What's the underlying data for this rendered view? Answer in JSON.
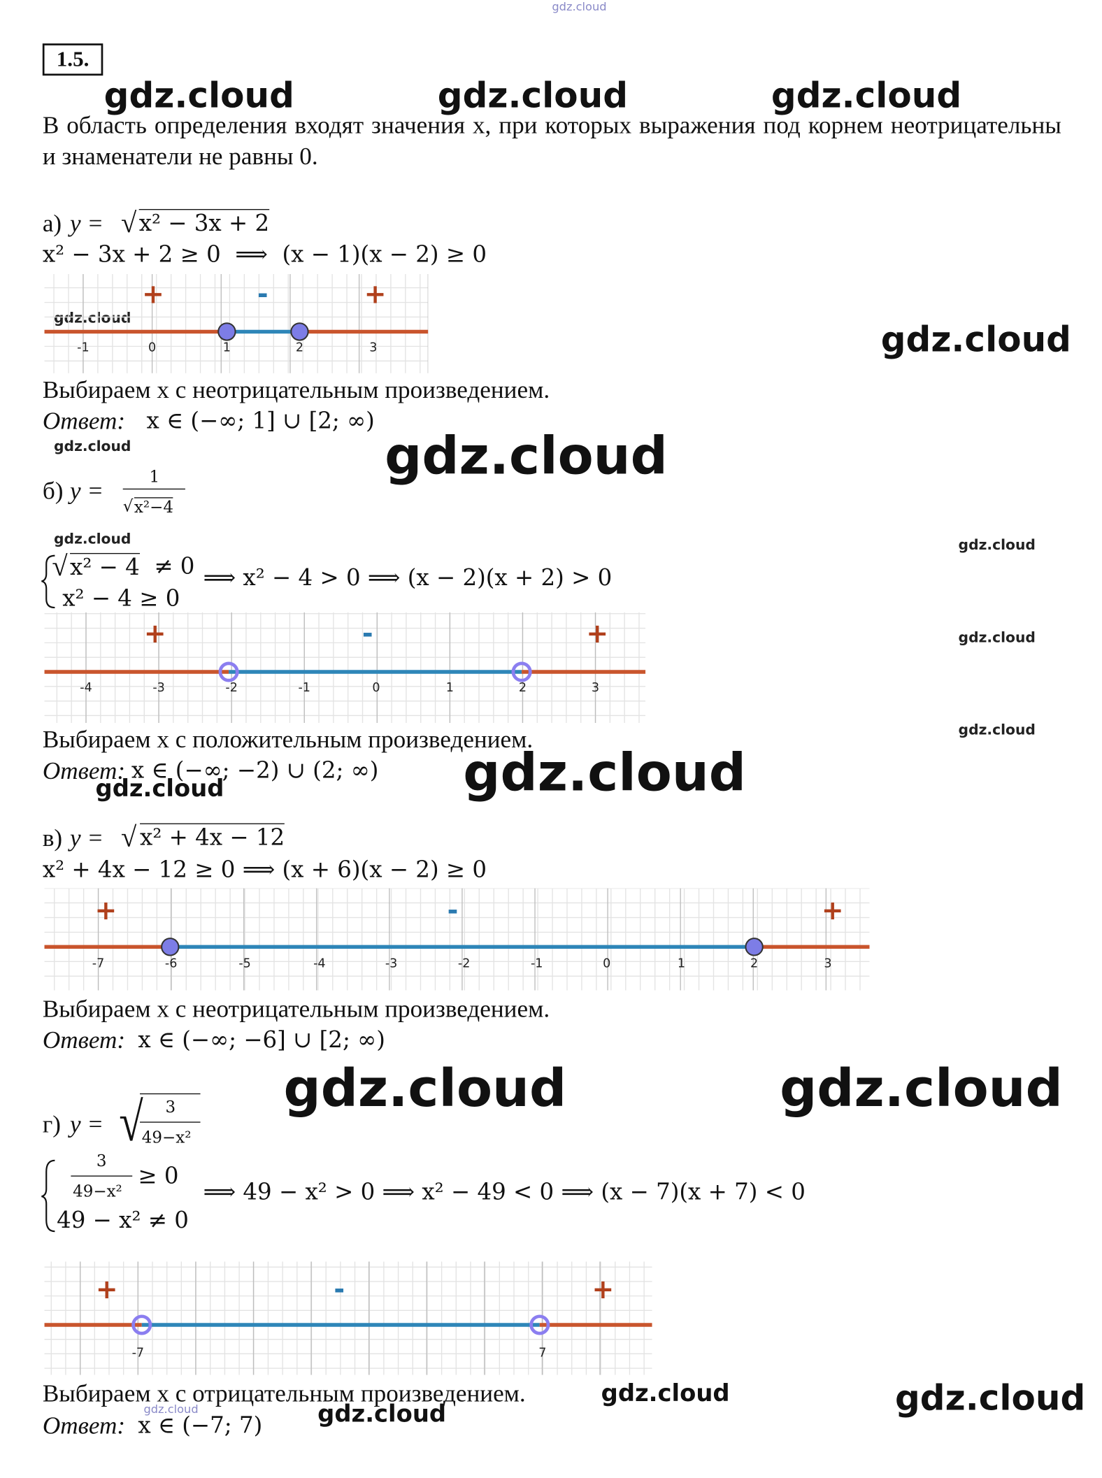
{
  "watermarks": [
    "gdz.cloud",
    "gdz.cloud",
    "gdz.cloud",
    "gdz.cloud",
    "gdz.cloud",
    "gdz.cloud",
    "gdz.cloud",
    "gdz.cloud",
    "gdz.cloud",
    "gdz.cloud",
    "gdz.cloud",
    "gdz.cloud",
    "gdz.cloud",
    "gdz.cloud",
    "gdz.cloud",
    "gdz.cloud",
    "gdz.cloud",
    "gdz.cloud",
    "gdz.cloud",
    "gdz.cloud"
  ],
  "header": {
    "number": "1.5."
  },
  "intro": "В область определения входят значения x, при которых выражения под корнем неотрицательны и знаменатели не равны 0.",
  "parts": [
    {
      "label": "а)",
      "lhs": "y =",
      "radical": "√",
      "radicand": "x² − 3x + 2",
      "steps": [
        "x² − 3x + 2 ≥ 0  ⟹  (x − 1)(x − 2) ≥ 0"
      ],
      "number_line": {
        "signs": [
          "+",
          "-",
          "+"
        ],
        "ticks": [
          -1,
          0,
          1,
          2,
          3
        ]
      },
      "conclusion": "Выбираем x с неотрицательным произведением.",
      "answer_label": "Ответ:",
      "answer": "x ∈ (−∞; 1] ∪ [2; ∞)"
    },
    {
      "label": "б)",
      "lhs": "y =",
      "numerator": "1",
      "radical": "√",
      "radicand": "x²−4",
      "system": [
        {
          "radical": "√",
          "radicand": "x² − 4",
          "rest": "≠ 0"
        },
        {
          "text": "x² − 4 ≥ 0"
        }
      ],
      "implication": "⟹ x² − 4 > 0 ⟹ (x − 2)(x + 2) > 0",
      "number_line": {
        "signs": [
          "+",
          "-",
          "+"
        ],
        "ticks": [
          -4,
          -3,
          -2,
          -1,
          0,
          1,
          2,
          3
        ]
      },
      "conclusion": "Выбираем x с положительным произведением.",
      "answer_label": "Ответ:",
      "answer": "x ∈ (−∞; −2) ∪ (2; ∞)"
    },
    {
      "label": "в)",
      "lhs": "y =",
      "radical": "√",
      "radicand": "x² + 4x − 12",
      "steps": [
        "x² + 4x − 12 ≥ 0 ⟹ (x + 6)(x − 2) ≥ 0"
      ],
      "number_line": {
        "signs": [
          "+",
          "-",
          "+"
        ],
        "ticks": [
          -7,
          -6,
          -5,
          -4,
          -3,
          -2,
          -1,
          0,
          1,
          2,
          3
        ]
      },
      "conclusion": "Выбираем x с неотрицательным произведением.",
      "answer_label": "Ответ:",
      "answer": "x ∈ (−∞; −6] ∪ [2; ∞)"
    },
    {
      "label": "г)",
      "lhs": "y =",
      "radical": "√",
      "numerator": "3",
      "denominator": "49−x²",
      "system": [
        {
          "numerator": "3",
          "denominator": "49−x²",
          "rest": "≥ 0"
        },
        {
          "text": "49 − x² ≠ 0"
        }
      ],
      "implication": "⟹ 49 − x² > 0 ⟹ x² − 49 < 0 ⟹ (x − 7)(x + 7) < 0",
      "number_line": {
        "signs": [
          "+",
          "-",
          "+"
        ],
        "ticks": [
          -7,
          7
        ]
      },
      "conclusion": "Выбираем x с отрицательным произведением.",
      "answer_label": "Ответ:",
      "answer": "x ∈ (−7; 7)"
    }
  ]
}
